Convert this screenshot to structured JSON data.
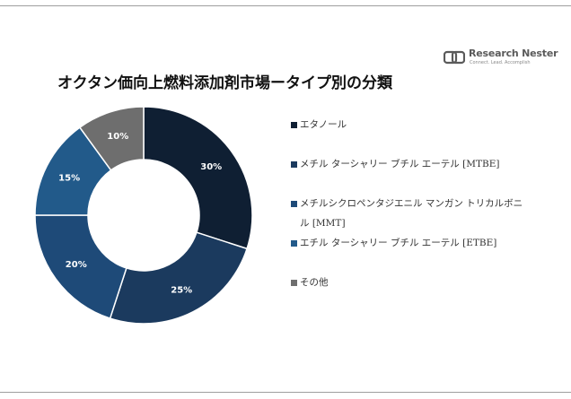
{
  "branding": {
    "name": "Research Nester",
    "tagline": "Connect. Lead. Accomplish",
    "logo_color": "#5a5a5a"
  },
  "chart_data": {
    "type": "pie",
    "title": "オクタン価向上燃料添加剤市場ータイプ別の分類",
    "donut": true,
    "legend_position": "right",
    "categories": [
      "エタノール",
      "メチル ターシャリー ブチル エーテル [MTBE]",
      "メチルシクロペンタジエニル マンガン トリカルボニル [MMT]",
      "エチル ターシャリー ブチル エーテル [ETBE]",
      "その他"
    ],
    "values": [
      30,
      25,
      20,
      15,
      10
    ],
    "value_labels": [
      "30%",
      "25%",
      "20%",
      "15%",
      "10%"
    ],
    "unit": "%",
    "colors": [
      "#0f1f33",
      "#1b3a5e",
      "#1e4a78",
      "#225a8a",
      "#6e6e6e"
    ]
  }
}
